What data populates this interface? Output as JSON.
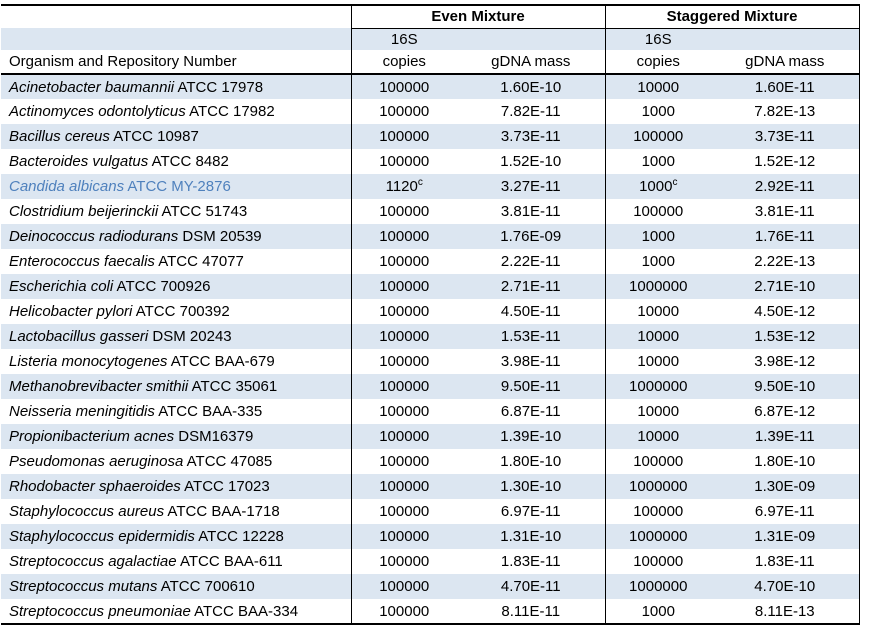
{
  "colors": {
    "row_stripe": "#dce6f1",
    "highlight_text": "#4f81bd",
    "border": "#000000"
  },
  "table": {
    "header": {
      "group_even": "Even Mixture",
      "group_staggered": "Staggered Mixture",
      "sub_16s": "16S",
      "organism": "Organism and Repository Number",
      "copies": "copies",
      "gdna_mass": "gDNA mass"
    },
    "rows": [
      {
        "name": "Acinetobacter baumannii",
        "id": "ATCC 17978",
        "even_copies": "100000",
        "even_mass": "1.60E-10",
        "stag_copies": "10000",
        "stag_mass": "1.60E-11"
      },
      {
        "name": "Actinomyces odontolyticus",
        "id": "ATCC 17982",
        "even_copies": "100000",
        "even_mass": "7.82E-11",
        "stag_copies": "1000",
        "stag_mass": "7.82E-13"
      },
      {
        "name": "Bacillus cereus",
        "id": "ATCC 10987",
        "even_copies": "100000",
        "even_mass": "3.73E-11",
        "stag_copies": "100000",
        "stag_mass": "3.73E-11"
      },
      {
        "name": "Bacteroides vulgatus",
        "id": "ATCC 8482",
        "even_copies": "100000",
        "even_mass": "1.52E-10",
        "stag_copies": "1000",
        "stag_mass": "1.52E-12"
      },
      {
        "name": "Candida albicans",
        "id": "ATCC MY-2876",
        "even_copies": "1120",
        "even_sup": "c",
        "even_mass": "3.27E-11",
        "stag_copies": "1000",
        "stag_sup": "c",
        "stag_mass": "2.92E-11",
        "highlight": true
      },
      {
        "name": "Clostridium beijerinckii",
        "id": "ATCC 51743",
        "even_copies": "100000",
        "even_mass": "3.81E-11",
        "stag_copies": "100000",
        "stag_mass": "3.81E-11"
      },
      {
        "name": "Deinococcus radiodurans",
        "id": "DSM 20539",
        "even_copies": "100000",
        "even_mass": "1.76E-09",
        "stag_copies": "1000",
        "stag_mass": "1.76E-11"
      },
      {
        "name": "Enterococcus faecalis",
        "id": "ATCC 47077",
        "even_copies": "100000",
        "even_mass": "2.22E-11",
        "stag_copies": "1000",
        "stag_mass": "2.22E-13"
      },
      {
        "name": "Escherichia coli",
        "id": "ATCC 700926",
        "even_copies": "100000",
        "even_mass": "2.71E-11",
        "stag_copies": "1000000",
        "stag_mass": "2.71E-10"
      },
      {
        "name": "Helicobacter pylori",
        "id": "ATCC 700392",
        "even_copies": "100000",
        "even_mass": "4.50E-11",
        "stag_copies": "10000",
        "stag_mass": "4.50E-12"
      },
      {
        "name": "Lactobacillus gasseri",
        "id": "DSM 20243",
        "even_copies": "100000",
        "even_mass": "1.53E-11",
        "stag_copies": "10000",
        "stag_mass": "1.53E-12"
      },
      {
        "name": "Listeria monocytogenes",
        "id": "ATCC BAA-679",
        "even_copies": "100000",
        "even_mass": "3.98E-11",
        "stag_copies": "10000",
        "stag_mass": "3.98E-12"
      },
      {
        "name": "Methanobrevibacter smithii",
        "id": "ATCC 35061",
        "even_copies": "100000",
        "even_mass": "9.50E-11",
        "stag_copies": "1000000",
        "stag_mass": "9.50E-10"
      },
      {
        "name": "Neisseria meningitidis",
        "id": "ATCC BAA-335",
        "even_copies": "100000",
        "even_mass": "6.87E-11",
        "stag_copies": "10000",
        "stag_mass": "6.87E-12"
      },
      {
        "name": "Propionibacterium acnes",
        "id": "DSM16379",
        "even_copies": "100000",
        "even_mass": "1.39E-10",
        "stag_copies": "10000",
        "stag_mass": "1.39E-11"
      },
      {
        "name": "Pseudomonas aeruginosa",
        "id": "ATCC 47085",
        "even_copies": "100000",
        "even_mass": "1.80E-10",
        "stag_copies": "100000",
        "stag_mass": "1.80E-10"
      },
      {
        "name": "Rhodobacter sphaeroides",
        "id": "ATCC 17023",
        "even_copies": "100000",
        "even_mass": "1.30E-10",
        "stag_copies": "1000000",
        "stag_mass": "1.30E-09"
      },
      {
        "name": "Staphylococcus aureus",
        "id": "ATCC BAA-1718",
        "even_copies": "100000",
        "even_mass": "6.97E-11",
        "stag_copies": "100000",
        "stag_mass": "6.97E-11"
      },
      {
        "name": "Staphylococcus epidermidis",
        "id": "ATCC 12228",
        "even_copies": "100000",
        "even_mass": "1.31E-10",
        "stag_copies": "1000000",
        "stag_mass": "1.31E-09"
      },
      {
        "name": "Streptococcus agalactiae",
        "id": "ATCC BAA-611",
        "even_copies": "100000",
        "even_mass": "1.83E-11",
        "stag_copies": "100000",
        "stag_mass": "1.83E-11"
      },
      {
        "name": "Streptococcus mutans",
        "id": "ATCC 700610",
        "even_copies": "100000",
        "even_mass": "4.70E-11",
        "stag_copies": "1000000",
        "stag_mass": "4.70E-10"
      },
      {
        "name": "Streptococcus pneumoniae",
        "id": "ATCC BAA-334",
        "even_copies": "100000",
        "even_mass": "8.11E-11",
        "stag_copies": "1000",
        "stag_mass": "8.11E-13"
      }
    ]
  }
}
